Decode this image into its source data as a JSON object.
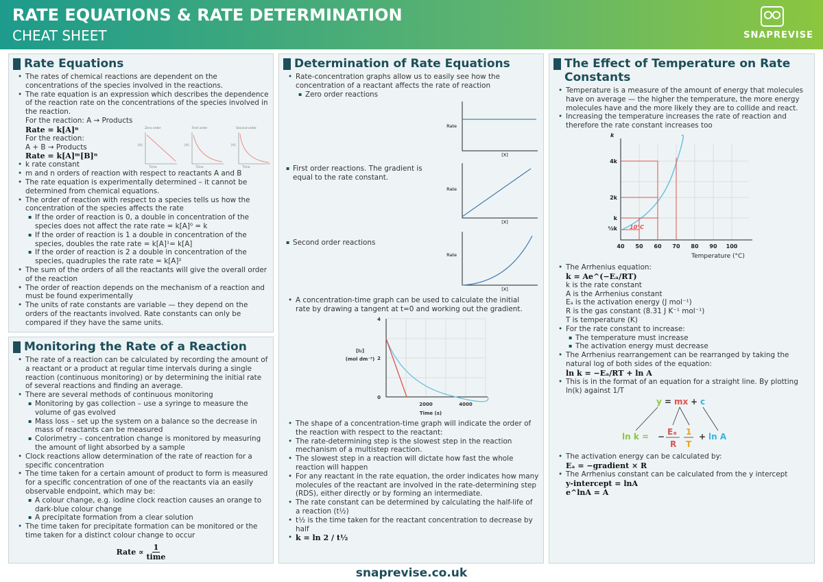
{
  "header": {
    "title": "RATE EQUATIONS & RATE DETERMINATION",
    "subtitle": "CHEAT SHEET",
    "brand": "SNAPREVISE"
  },
  "footer": "snaprevise.co.uk",
  "rate_equations": {
    "title": "Rate Equations",
    "graph_titles": [
      "Zero order",
      "First order",
      "Second order"
    ],
    "graph_x": "Time",
    "graph_y": "[A]",
    "bullets": [
      "The rates of chemical reactions are dependent on the concentrations of the species involved in the reactions.",
      {
        "text": "The rate equation is an expression which describes the dependence of the reaction rate on the concentrations of the species involved in the reaction.",
        "lines": [
          "For the reaction: A → Products",
          {
            "formula": "Rate = k[A]ⁿ"
          },
          "For the reaction:",
          "A + B → Products",
          {
            "formula": "Rate = k[A]ᵐ[B]ⁿ"
          }
        ]
      },
      "k rate constant",
      "m and n orders of reaction with respect to reactants A and B",
      "The rate equation is experimentally determined – it cannot be determined from chemical equations.",
      {
        "text": "The order of reaction with respect to a species tells us how the concentration of the species affects the rate",
        "sub": [
          "If the order of reaction is 0, a double in concentration of the species does not affect the rate rate = k[A]⁰ = k",
          "If the order of reaction is 1 a double in concentration of the species, doubles the rate rate = k[A]¹= k[A]",
          "If the order of reaction is 2 a double in concentration of the species, quadruples the rate rate = k[A]²"
        ]
      },
      "The sum of the orders of all the reactants will give the overall order of the reaction",
      "The order of reaction depends on the mechanism of a reaction and must be found experimentally",
      "The units of rate constants are variable — they depend on the orders of the reactants involved. Rate constants can only be compared if they have the same units."
    ]
  },
  "monitoring": {
    "title": "Monitoring the Rate of a Reaction",
    "bullets": [
      "The rate of a reaction can be calculated by recording the amount of a reactant or a product at regular time intervals during a single reaction (continuous monitoring) or by determining the initial rate of several reactions and finding an average.",
      {
        "text": "There are several methods of continuous monitoring",
        "sub": [
          "Monitoring by gas collection – use a syringe to measure the volume of gas evolved",
          "Mass loss – set up the system on a balance so the decrease in mass of reactants can be measured",
          "Colorimetry – concentration change is monitored by measuring the amount of light absorbed by a sample"
        ]
      },
      "Clock reactions allow determination of the rate of reaction for a specific concentration",
      {
        "text": "The time taken for a certain amount of product to form is measured for a specific concentration of one of the reactants via an easily observable endpoint, which may be:",
        "sub": [
          "A colour change, e.g. iodine clock reaction causes an orange to dark-blue colour change",
          "A precipitate formation from a clear solution"
        ]
      },
      "The time taken for precipitate formation can be monitored or the time taken for a distinct colour change to occur"
    ],
    "formula": {
      "lhs": "Rate ∝",
      "num": "1",
      "den": "time"
    }
  },
  "determination": {
    "title": "Determination of Rate Equations",
    "intro": [
      {
        "text": "Rate-concentration graphs allow us to easily see how the concentration of a reactant affects the rate of reaction",
        "sub": [
          "Zero order reactions"
        ]
      }
    ],
    "first": [
      "First order reactions. The gradient is equal to the rate constant."
    ],
    "second": [
      "Second order reactions"
    ],
    "rate_graph": {
      "y": "Rate",
      "x": "[X]"
    },
    "conc_intro": [
      "A concentration-time graph can be used to calculate the initial rate by drawing a tangent at t=0 and working out the gradient."
    ],
    "conc_graph": {
      "y_label": "[I₂]",
      "y_unit": "(mol dm⁻³)",
      "x_label": "Time (s)",
      "y_ticks": [
        "4",
        "2",
        "0"
      ],
      "x_ticks": [
        "2000",
        "4000"
      ]
    },
    "bullets": [
      "The shape of a concentration-time graph will indicate the order of the reaction with respect to the reactant:",
      "The rate-determining step is the slowest step in the reaction mechanism of a multistep reaction.",
      "The slowest step in a reaction will dictate how fast the whole reaction will happen",
      "For any reactant in the rate equation, the order indicates how many molecules of the reactant are involved in the rate-determining step (RDS), either directly or by forming an intermediate.",
      "The rate constant can be determined by calculating the half-life of a reaction (t½)",
      "t½ is the time taken for the reactant concentration to decrease by half",
      {
        "formula": "k = ln 2 / t½"
      }
    ]
  },
  "temperature": {
    "title": "The Effect of Temperature on Rate Constants",
    "intro": [
      "Temperature is a measure of the amount of energy that molecules have on average — the higher the temperature, the more energy molecules have and the more likely they are to collide and react.",
      "Increasing the temperature increases the rate of reaction and therefore the rate constant increases too"
    ],
    "graph": {
      "y_label": "k",
      "y_ticks": [
        "4k",
        "2k",
        "k",
        "½k"
      ],
      "x_ticks": [
        "40",
        "50",
        "60",
        "70",
        "80",
        "90",
        "100"
      ],
      "x_label": "Temperature (°C)",
      "annotation": "10°C"
    },
    "bullets": [
      {
        "text": "The Arrhenius equation:",
        "lines": [
          {
            "formula": "k = Ae^(−Eₐ/RT)"
          },
          "k is the rate constant",
          "A is the Arrhenius constant",
          "Eₐ is the activation energy (J mol⁻¹)",
          "R is the gas constant (8.31 J K⁻¹ mol⁻¹)",
          "T is temperature (K)"
        ]
      },
      {
        "text": "For the rate constant to increase:",
        "sub": [
          "The temperature must increase",
          "The activation energy must decrease"
        ]
      },
      {
        "text": "The Arrhenius rearrangement can be rearranged by taking the natural log of both sides of the equation:",
        "lines": [
          {
            "formula": "ln k = −Eₐ/RT + ln A"
          }
        ]
      },
      "This is in the format of an equation for a straight line. By plotting ln(k) against 1/T"
    ],
    "line_eq": {
      "top": [
        "y",
        "=",
        "mx",
        "+",
        "c"
      ],
      "bottom": [
        "ln k =",
        "−",
        "Eₐ",
        "R",
        "1",
        "T",
        "+",
        "ln A"
      ]
    },
    "bullets2": [
      {
        "text": "The activation energy can be calculated by:",
        "lines": [
          {
            "formula": "Eₐ = −gradient × R"
          }
        ]
      },
      {
        "text": "The Arrhenius constant can be calculated from the y intercept",
        "lines": [
          {
            "formula": "y-intercept = lnA"
          },
          {
            "formula": "e^lnA = A"
          }
        ]
      }
    ]
  }
}
